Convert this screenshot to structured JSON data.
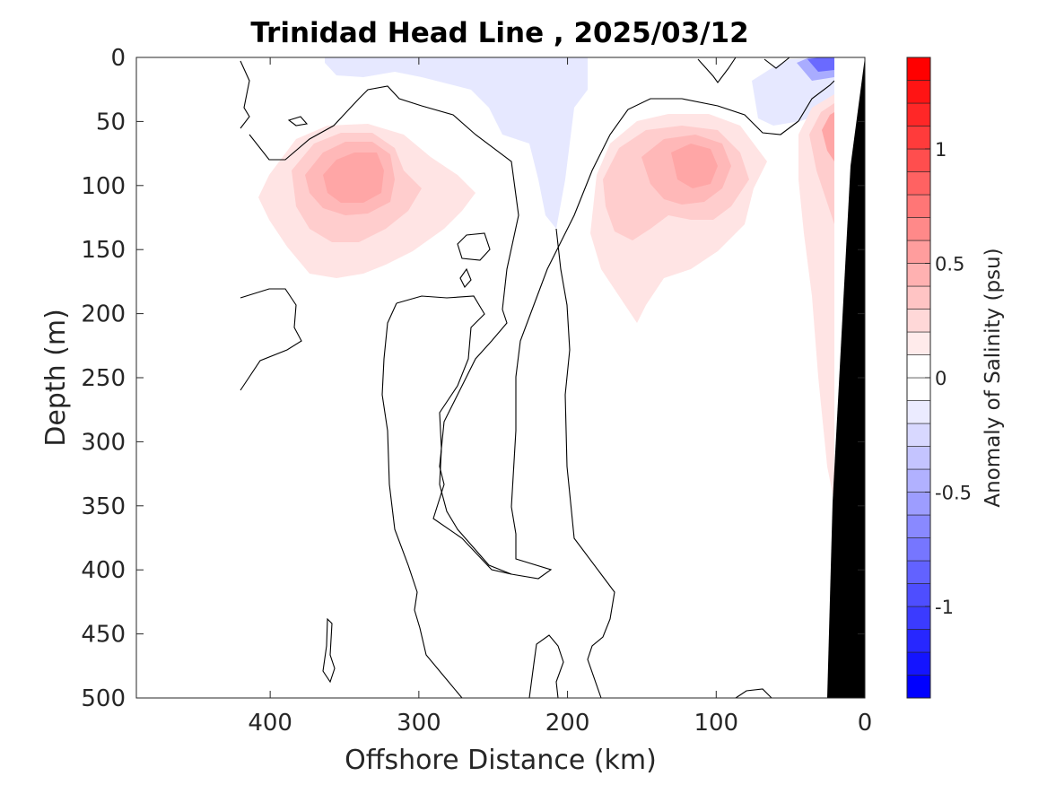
{
  "chart_data": {
    "type": "heatmap",
    "title": "Trinidad Head Line , 2025/03/12",
    "xlabel": "Offshore Distance (km)",
    "ylabel": "Depth (m)",
    "xlim": [
      490,
      0
    ],
    "ylim": [
      500,
      0
    ],
    "x_ticks": [
      "400",
      "300",
      "200",
      "100",
      "0"
    ],
    "x_tick_values": [
      400,
      300,
      200,
      100,
      0
    ],
    "y_ticks": [
      "0",
      "50",
      "100",
      "150",
      "200",
      "250",
      "300",
      "350",
      "400",
      "450",
      "500"
    ],
    "y_tick_values": [
      0,
      50,
      100,
      150,
      200,
      250,
      300,
      350,
      400,
      450,
      500
    ],
    "colorbar": {
      "label": "Anomaly of Salinity (psu)",
      "range": [
        -1.4,
        1.4
      ],
      "step": 0.1,
      "ticks": [
        "1",
        "0.5",
        "0",
        "-0.5",
        "-1"
      ],
      "tick_values": [
        1,
        0.5,
        0,
        -0.5,
        -1
      ],
      "color_low": "#0000ff",
      "color_mid": "#ffffff",
      "color_high": "#ff0000"
    },
    "features": [
      {
        "name": "positive anomaly core",
        "x": 340,
        "y": 80,
        "value": 0.4
      },
      {
        "name": "positive anomaly core",
        "x": 105,
        "y": 80,
        "value": 0.45
      },
      {
        "name": "coastal positive anomaly",
        "x": 20,
        "y": 60,
        "value": 0.45
      },
      {
        "name": "surface negative anomaly",
        "x": 220,
        "y": 20,
        "value": -0.1
      },
      {
        "name": "surface negative anomaly",
        "x": 40,
        "y": 5,
        "value": -0.6
      }
    ],
    "bathymetry_color": "#000000",
    "grid": false
  }
}
